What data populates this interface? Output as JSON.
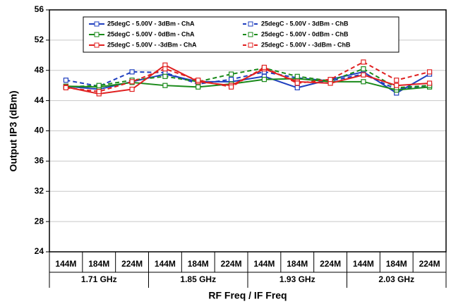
{
  "chart_data": {
    "type": "line",
    "x_label": "RF Freq / IF Freq",
    "y_label": "Output IP3 (dBm)",
    "categories": [
      "144M",
      "184M",
      "224M",
      "144M",
      "184M",
      "224M",
      "144M",
      "184M",
      "224M",
      "144M",
      "184M",
      "224M"
    ],
    "groups": [
      "1.71 GHz",
      "1.85 GHz",
      "1.93 GHz",
      "2.03 GHz"
    ],
    "ylim": [
      24,
      56
    ],
    "yticks": [
      24,
      28,
      32,
      36,
      40,
      44,
      48,
      52,
      56
    ],
    "grid": true,
    "series": [
      {
        "name": "25degC - 5.00V - 3dBm - ChA",
        "color": "#1f3fbf",
        "style": "solid",
        "values": [
          45.9,
          45.5,
          46.5,
          47.5,
          46.5,
          46.5,
          47.2,
          45.7,
          46.8,
          47.8,
          45.0,
          47.5
        ]
      },
      {
        "name": "25degC - 5.00V - 3dBm - ChB",
        "color": "#1f3fbf",
        "style": "dashed",
        "values": [
          46.7,
          45.9,
          47.8,
          47.7,
          46.2,
          46.8,
          47.8,
          47.0,
          46.6,
          47.5,
          45.5,
          46.0
        ]
      },
      {
        "name": "25degC - 5.00V - 0dBm - ChA",
        "color": "#1a8a1a",
        "style": "solid",
        "values": [
          45.9,
          45.8,
          46.4,
          46.0,
          45.8,
          46.2,
          46.8,
          46.9,
          46.5,
          46.5,
          45.4,
          45.8
        ]
      },
      {
        "name": "25degC - 5.00V - 0dBm - ChB",
        "color": "#1a8a1a",
        "style": "dashed",
        "values": [
          45.8,
          46.0,
          46.7,
          47.2,
          46.5,
          47.5,
          48.3,
          47.2,
          46.6,
          48.2,
          45.7,
          46.0
        ]
      },
      {
        "name": "25degC - 5.00V - -3dBm - ChA",
        "color": "#e02020",
        "style": "solid",
        "values": [
          45.8,
          44.9,
          45.5,
          48.7,
          46.5,
          46.0,
          48.2,
          46.5,
          46.3,
          47.4,
          46.0,
          46.3
        ]
      },
      {
        "name": "25degC - 5.00V - -3dBm - ChB",
        "color": "#e02020",
        "style": "dashed",
        "values": [
          45.7,
          45.2,
          46.5,
          48.2,
          46.7,
          45.8,
          48.4,
          46.3,
          46.8,
          49.1,
          46.7,
          47.8
        ]
      }
    ]
  }
}
